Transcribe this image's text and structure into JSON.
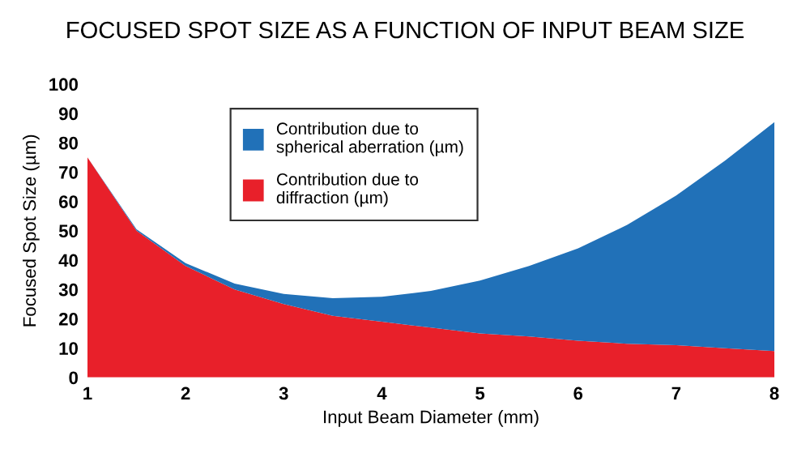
{
  "chart_data": {
    "type": "area",
    "stacked": true,
    "title": "FOCUSED SPOT SIZE AS A FUNCTION OF INPUT BEAM SIZE",
    "xlabel": "Input Beam Diameter (mm)",
    "ylabel": "Focused Spot Size (µm)",
    "x": [
      1,
      1.5,
      2,
      2.5,
      3,
      3.5,
      4,
      4.5,
      5,
      5.5,
      6,
      6.5,
      7,
      7.5,
      8
    ],
    "series": [
      {
        "name": "Contribution due to diffraction (µm)",
        "color": "#e8202a",
        "values": [
          75,
          50,
          38,
          30,
          25,
          21,
          19,
          17,
          15,
          14,
          12.5,
          11.5,
          11,
          10,
          9
        ]
      },
      {
        "name": "Contribution due to spherical aberration (µm)",
        "color": "#2171b8",
        "values": [
          0,
          0.5,
          1,
          2,
          3.5,
          6,
          8.5,
          12.5,
          18,
          24,
          31.5,
          40.5,
          51,
          64,
          78
        ]
      }
    ],
    "xlim": [
      1,
      8
    ],
    "xticks": [
      1,
      2,
      3,
      4,
      5,
      6,
      7,
      8
    ],
    "ylim": [
      0,
      100
    ],
    "yticks": [
      0,
      10,
      20,
      30,
      40,
      50,
      60,
      70,
      80,
      90,
      100
    ],
    "grid": false,
    "legend": "top left"
  }
}
